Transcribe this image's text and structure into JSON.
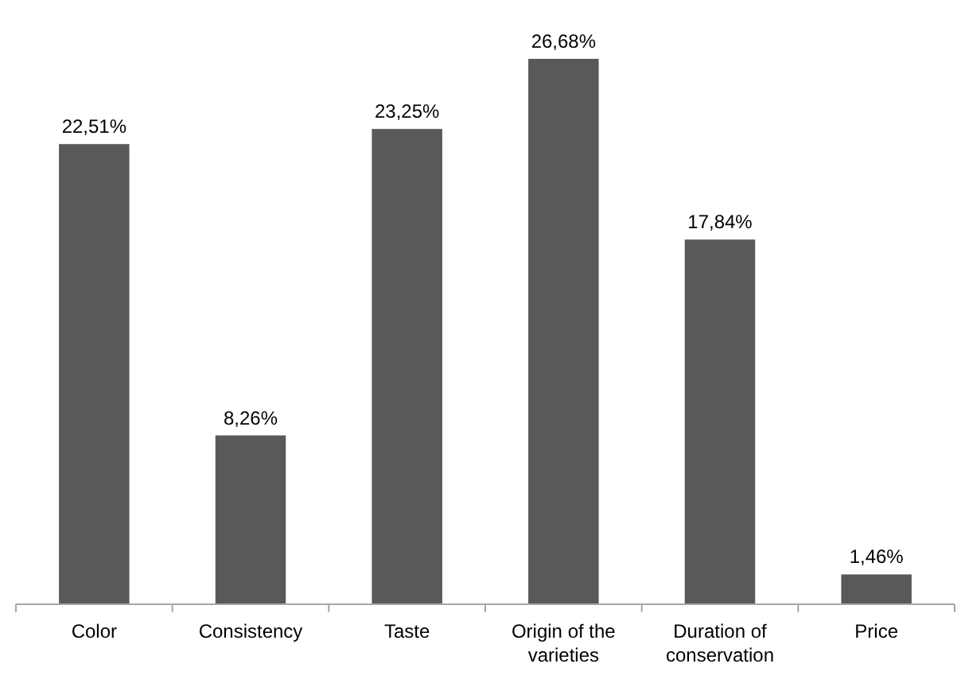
{
  "chart_data": {
    "type": "bar",
    "categories": [
      "Color",
      "Consistency",
      "Taste",
      "Origin of the varieties",
      "Duration of conservation",
      "Price"
    ],
    "values": [
      22.51,
      8.26,
      23.25,
      26.68,
      17.84,
      1.46
    ],
    "value_labels": [
      "22,51%",
      "8,26%",
      "23,25%",
      "26,68%",
      "17,84%",
      "1,46%"
    ],
    "color": "#595959"
  }
}
